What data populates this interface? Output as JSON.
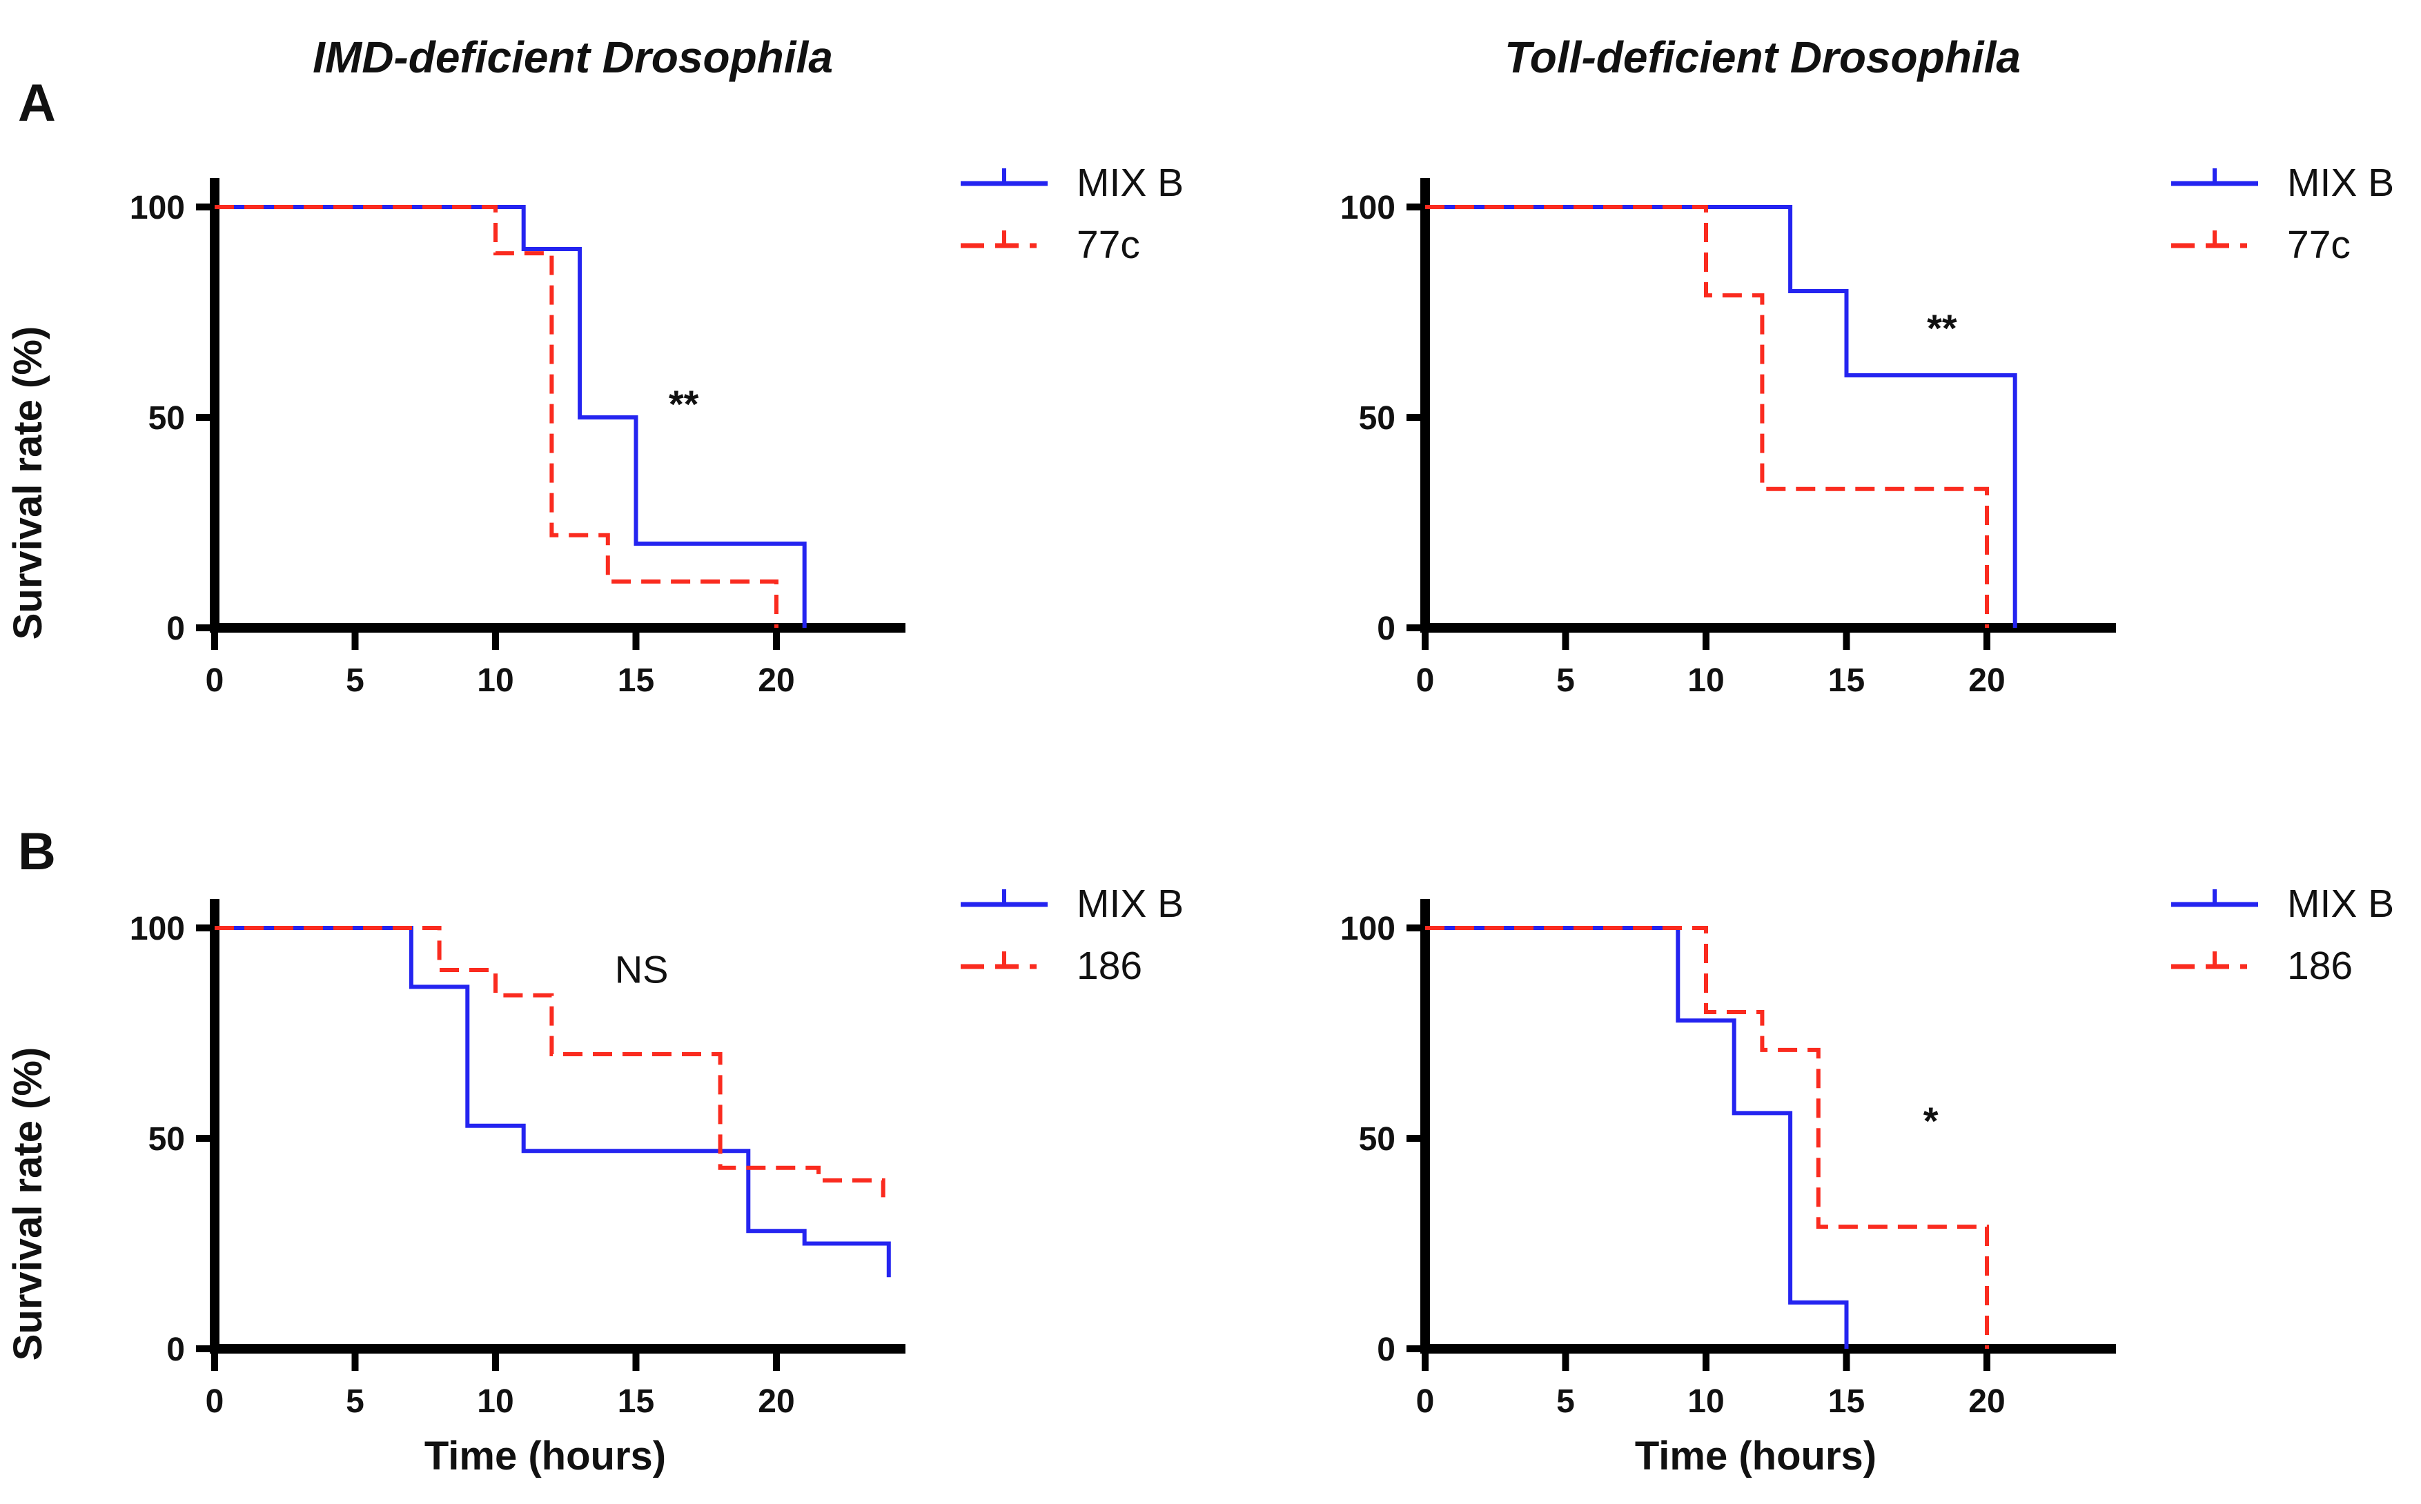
{
  "figure": {
    "panel_labels": [
      "A",
      "B"
    ],
    "background": "#ffffff",
    "colors": {
      "mix_b_blue": "#2424f0",
      "comparator_red": "#fa2b1f",
      "axis_black": "#000000",
      "text_black": "#111111"
    }
  },
  "chart_data": [
    {
      "type": "line",
      "subtype": "kaplan-meier-survival-step",
      "panel": "A",
      "position": "top-left",
      "title": "IMD-deficient Drosophila",
      "ylabel": "Survival rate (%)",
      "xticks": [
        0,
        5,
        10,
        15,
        20
      ],
      "yticks": [
        0,
        50,
        100
      ],
      "xlim": [
        0,
        24
      ],
      "ylim": [
        0,
        100
      ],
      "grid": false,
      "legend_position": "right-of-plot",
      "significance": {
        "label": "**",
        "x": 16.7,
        "y": 50
      },
      "series": [
        {
          "name": "MIX B",
          "color": "#2424f0",
          "line_style": "solid",
          "steps": [
            [
              0,
              100
            ],
            [
              11,
              100
            ],
            [
              11,
              90
            ],
            [
              13,
              90
            ],
            [
              13,
              50
            ],
            [
              15,
              50
            ],
            [
              15,
              20
            ],
            [
              21,
              20
            ],
            [
              21,
              0
            ]
          ]
        },
        {
          "name": "77c",
          "color": "#fa2b1f",
          "line_style": "dashed",
          "steps": [
            [
              0,
              100
            ],
            [
              10,
              100
            ],
            [
              10,
              89
            ],
            [
              12,
              89
            ],
            [
              12,
              22
            ],
            [
              14,
              22
            ],
            [
              14,
              11
            ],
            [
              20,
              11
            ],
            [
              20,
              0
            ]
          ]
        }
      ]
    },
    {
      "type": "line",
      "subtype": "kaplan-meier-survival-step",
      "panel": "A",
      "position": "top-right",
      "title": "Toll-deficient Drosophila",
      "xticks": [
        0,
        5,
        10,
        15,
        20
      ],
      "yticks": [
        0,
        50,
        100
      ],
      "xlim": [
        0,
        24
      ],
      "ylim": [
        0,
        100
      ],
      "grid": false,
      "legend_position": "right-of-plot",
      "significance": {
        "label": "**",
        "x": 18.4,
        "y": 68
      },
      "series": [
        {
          "name": "MIX B",
          "color": "#2424f0",
          "line_style": "solid",
          "steps": [
            [
              0,
              100
            ],
            [
              13,
              100
            ],
            [
              13,
              80
            ],
            [
              15,
              80
            ],
            [
              15,
              60
            ],
            [
              21,
              60
            ],
            [
              21,
              0
            ]
          ]
        },
        {
          "name": "77c",
          "color": "#fa2b1f",
          "line_style": "dashed",
          "steps": [
            [
              0,
              100
            ],
            [
              10,
              100
            ],
            [
              10,
              79
            ],
            [
              12,
              79
            ],
            [
              12,
              33
            ],
            [
              20,
              33
            ],
            [
              20,
              0
            ]
          ]
        }
      ]
    },
    {
      "type": "line",
      "subtype": "kaplan-meier-survival-step",
      "panel": "B",
      "position": "bottom-left",
      "ylabel": "Survival rate (%)",
      "xlabel": "Time (hours)",
      "xticks": [
        0,
        5,
        10,
        15,
        20
      ],
      "yticks": [
        0,
        50,
        100
      ],
      "xlim": [
        0,
        24
      ],
      "ylim": [
        0,
        100
      ],
      "grid": false,
      "legend_position": "right-of-plot",
      "significance": {
        "label": "NS",
        "x": 15.2,
        "y": 87
      },
      "series": [
        {
          "name": "MIX B",
          "color": "#2424f0",
          "line_style": "solid",
          "steps": [
            [
              0,
              100
            ],
            [
              7,
              100
            ],
            [
              7,
              86
            ],
            [
              9,
              86
            ],
            [
              9,
              53
            ],
            [
              11,
              53
            ],
            [
              11,
              47
            ],
            [
              19,
              47
            ],
            [
              19,
              28
            ],
            [
              21,
              28
            ],
            [
              21,
              25
            ],
            [
              24,
              25
            ],
            [
              24,
              17
            ]
          ]
        },
        {
          "name": "186",
          "color": "#fa2b1f",
          "line_style": "dashed",
          "steps": [
            [
              0,
              100
            ],
            [
              8,
              100
            ],
            [
              8,
              90
            ],
            [
              10,
              90
            ],
            [
              10,
              84
            ],
            [
              12,
              84
            ],
            [
              12,
              70
            ],
            [
              18,
              70
            ],
            [
              18,
              43
            ],
            [
              21.5,
              43
            ],
            [
              21.5,
              40
            ],
            [
              23.8,
              40
            ],
            [
              23.8,
              36
            ]
          ]
        }
      ]
    },
    {
      "type": "line",
      "subtype": "kaplan-meier-survival-step",
      "panel": "B",
      "position": "bottom-right",
      "xlabel": "Time (hours)",
      "xticks": [
        0,
        5,
        10,
        15,
        20
      ],
      "yticks": [
        0,
        50,
        100
      ],
      "xlim": [
        0,
        24
      ],
      "ylim": [
        0,
        100
      ],
      "grid": false,
      "legend_position": "right-of-plot",
      "significance": {
        "label": "*",
        "x": 18,
        "y": 51
      },
      "series": [
        {
          "name": "MIX B",
          "color": "#2424f0",
          "line_style": "solid",
          "steps": [
            [
              0,
              100
            ],
            [
              9,
              100
            ],
            [
              9,
              78
            ],
            [
              11,
              78
            ],
            [
              11,
              56
            ],
            [
              13,
              56
            ],
            [
              13,
              11
            ],
            [
              15,
              11
            ],
            [
              15,
              0
            ]
          ]
        },
        {
          "name": "186",
          "color": "#fa2b1f",
          "line_style": "dashed",
          "steps": [
            [
              0,
              100
            ],
            [
              10,
              100
            ],
            [
              10,
              80
            ],
            [
              12,
              80
            ],
            [
              12,
              71
            ],
            [
              14,
              71
            ],
            [
              14,
              29
            ],
            [
              20,
              29
            ],
            [
              20,
              0
            ]
          ]
        }
      ]
    }
  ]
}
